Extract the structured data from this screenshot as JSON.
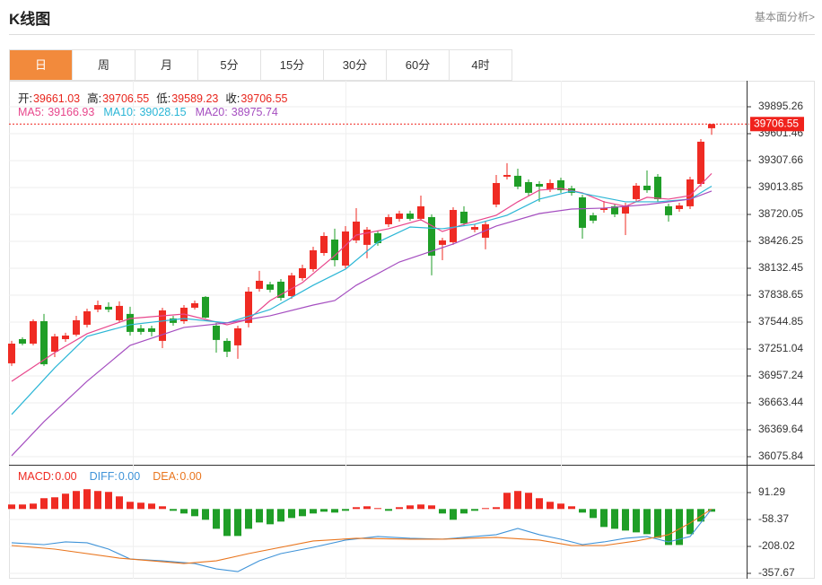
{
  "header": {
    "title": "K线图",
    "link": "基本面分析>"
  },
  "tabs": [
    "日",
    "周",
    "月",
    "5分",
    "15分",
    "30分",
    "60分",
    "4时"
  ],
  "active_tab": 0,
  "chart_data": [
    {
      "type": "candlestick",
      "info_labels": [
        "开:",
        "高:",
        "低:",
        "收:"
      ],
      "info_color": "#e8251c",
      "up_color": "#ef2b23",
      "down_color": "#1f9e27",
      "ylim": [
        35987.7,
        40179.3
      ],
      "yticks": [
        39895.26,
        39601.46,
        39307.66,
        39013.85,
        38720.05,
        38426.25,
        38132.45,
        37838.65,
        37544.85,
        37251.04,
        36957.24,
        36663.44,
        36369.64,
        36075.84
      ],
      "grid": true,
      "open": [
        37095,
        37359,
        37310,
        37555,
        37222,
        37359,
        37408,
        37516,
        37682,
        37712,
        37565,
        37634,
        37477,
        37477,
        37340,
        37585,
        37555,
        37702,
        37820,
        37506,
        37340,
        37291,
        37536,
        37908,
        37957,
        37986,
        37829,
        38025,
        38123,
        38299,
        38446,
        38162,
        38437,
        38388,
        38515,
        38613,
        38672,
        38730,
        38672,
        38691,
        38388,
        38417,
        38750,
        38554,
        38466,
        38828,
        39132,
        39142,
        39073,
        39053,
        38995,
        39093,
        39005,
        38907,
        38711,
        38769,
        38809,
        38730,
        38887,
        39034,
        39132,
        38809,
        38779,
        38809,
        39053,
        39661.03
      ],
      "high": [
        37340,
        37379,
        37575,
        37634,
        37418,
        37428,
        37614,
        37692,
        37780,
        37761,
        37771,
        37712,
        37516,
        37506,
        37702,
        37614,
        37731,
        37780,
        37829,
        37536,
        37369,
        37506,
        37927,
        38104,
        37986,
        38015,
        38084,
        38172,
        38368,
        38525,
        38564,
        38593,
        38789,
        38583,
        38544,
        38721,
        38760,
        38760,
        38926,
        38721,
        38466,
        38799,
        38809,
        38613,
        38642,
        39151,
        39279,
        39220,
        39102,
        39083,
        39102,
        39122,
        39034,
        38936,
        38740,
        38867,
        38838,
        38848,
        39063,
        39200,
        39161,
        38838,
        38848,
        39132,
        39543,
        39706.55
      ],
      "low": [
        37066,
        37291,
        37291,
        37066,
        37163,
        37330,
        37389,
        37487,
        37653,
        37653,
        37536,
        37398,
        37408,
        37389,
        37261,
        37506,
        37526,
        37682,
        37585,
        37212,
        37163,
        37144,
        37487,
        37878,
        37869,
        37780,
        37800,
        37996,
        38094,
        38270,
        38153,
        38133,
        38407,
        38241,
        38378,
        38583,
        38642,
        38652,
        38652,
        38055,
        38221,
        38388,
        38593,
        38525,
        38339,
        38799,
        39102,
        38995,
        38926,
        38858,
        38965,
        38956,
        38926,
        38456,
        38623,
        38740,
        38691,
        38495,
        38858,
        38956,
        38858,
        38642,
        38750,
        38779,
        39024,
        39589.23
      ],
      "close": [
        37310,
        37310,
        37555,
        37085,
        37389,
        37398,
        37565,
        37663,
        37731,
        37682,
        37722,
        37438,
        37438,
        37438,
        37673,
        37536,
        37702,
        37751,
        37594,
        37350,
        37222,
        37477,
        37878,
        37996,
        37898,
        37810,
        38055,
        38133,
        38329,
        38485,
        38221,
        38534,
        38642,
        38554,
        38407,
        38691,
        38730,
        38672,
        38809,
        38270,
        38437,
        38769,
        38623,
        38583,
        38613,
        39063,
        39151,
        39024,
        38956,
        39024,
        39063,
        38985,
        38956,
        38574,
        38652,
        38789,
        38721,
        38818,
        39034,
        38985,
        38887,
        38711,
        38818,
        39102,
        39514,
        39706.55
      ],
      "last_price_color": "#f0221c",
      "series": [
        {
          "name": "MA5:",
          "color": "#e8478c",
          "x": [
            0,
            4,
            7,
            11,
            16,
            20,
            22,
            24,
            27,
            30,
            32,
            35,
            38,
            40,
            42,
            45,
            47,
            49,
            51,
            53,
            55,
            57,
            59,
            61,
            63,
            65
          ],
          "values": [
            36899,
            37212,
            37418,
            37584,
            37633,
            37516,
            37575,
            37780,
            37976,
            38270,
            38495,
            38564,
            38662,
            38534,
            38613,
            38711,
            38858,
            38985,
            39004,
            38956,
            38858,
            38809,
            38907,
            38887,
            38926,
            39166.93
          ]
        },
        {
          "name": "MA10:",
          "color": "#2bb6d6",
          "x": [
            0,
            4,
            7,
            11,
            16,
            20,
            24,
            28,
            31,
            34,
            37,
            40,
            43,
            46,
            49,
            52,
            54,
            57,
            60,
            63,
            65
          ],
          "values": [
            36537,
            37046,
            37389,
            37516,
            37584,
            37536,
            37682,
            37947,
            38123,
            38417,
            38583,
            38564,
            38613,
            38711,
            38887,
            38975,
            38926,
            38858,
            38858,
            38887,
            39028.15
          ]
        },
        {
          "name": "MA20:",
          "color": "#a54ec0",
          "x": [
            0,
            3,
            7,
            11,
            16,
            20,
            24,
            28,
            30,
            32,
            36,
            41,
            45,
            49,
            52,
            55,
            59,
            63,
            65
          ],
          "values": [
            36086,
            36458,
            36899,
            37291,
            37487,
            37536,
            37614,
            37731,
            37780,
            37947,
            38201,
            38397,
            38593,
            38730,
            38779,
            38789,
            38828,
            38887,
            38975.74
          ]
        }
      ]
    },
    {
      "type": "macd",
      "ylim": [
        -387.6,
        235.9
      ],
      "yticks": [
        91.29,
        -58.37,
        -208.02,
        -357.67
      ],
      "grid": true,
      "hist": {
        "name": "MACD:",
        "current": {
          "value": 0,
          "label": "0.00"
        },
        "up_color": "#ef2b23",
        "down_color": "#1f9e27",
        "values": [
          25,
          25,
          30,
          60,
          65,
          85,
          100,
          110,
          100,
          95,
          70,
          40,
          35,
          30,
          15,
          -10,
          -25,
          -40,
          -60,
          -110,
          -150,
          -150,
          -110,
          -75,
          -85,
          -70,
          -50,
          -40,
          -25,
          -15,
          -20,
          -10,
          10,
          15,
          5,
          -10,
          10,
          20,
          25,
          20,
          -25,
          -60,
          -25,
          -10,
          5,
          10,
          90,
          100,
          90,
          60,
          40,
          30,
          15,
          -20,
          -50,
          -100,
          -110,
          -120,
          -130,
          -140,
          -160,
          -200,
          -200,
          -140,
          -70,
          -15
        ]
      },
      "series": [
        {
          "name": "DIFF:",
          "color": "#3f93d8",
          "current": {
            "value": 0,
            "label": "0.00"
          },
          "x": [
            0,
            3,
            5,
            7,
            9,
            11,
            14,
            17,
            19,
            21,
            23,
            25,
            28,
            31,
            34,
            37,
            40,
            43,
            45,
            47,
            49,
            51,
            53,
            55,
            57,
            59,
            61,
            63,
            65
          ],
          "values": [
            -188,
            -198,
            -183,
            -188,
            -223,
            -278,
            -288,
            -303,
            -333,
            -348,
            -288,
            -248,
            -213,
            -173,
            -153,
            -163,
            -168,
            -153,
            -143,
            -108,
            -143,
            -168,
            -198,
            -183,
            -163,
            -153,
            -183,
            -153,
            0
          ]
        },
        {
          "name": "DEA:",
          "color": "#e9761f",
          "current": {
            "value": 0,
            "label": "0.00"
          },
          "x": [
            0,
            4,
            10,
            16,
            19,
            22,
            28,
            32,
            37,
            40,
            45,
            49,
            52,
            55,
            58,
            61,
            63,
            65
          ],
          "values": [
            -203,
            -223,
            -273,
            -303,
            -288,
            -248,
            -178,
            -163,
            -168,
            -168,
            -158,
            -173,
            -203,
            -203,
            -178,
            -143,
            -78,
            0
          ]
        }
      ]
    }
  ]
}
